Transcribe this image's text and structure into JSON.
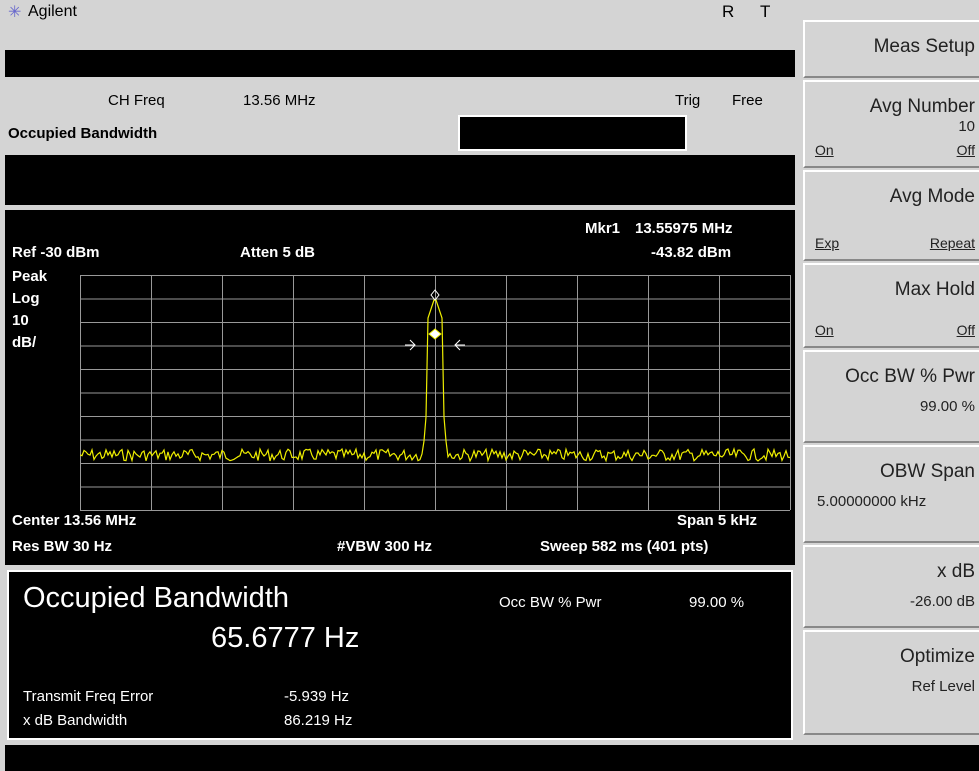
{
  "header": {
    "brand": "Agilent",
    "indicators": [
      "R",
      "T"
    ]
  },
  "status": {
    "ch_freq_label": "CH Freq",
    "ch_freq_value": "13.56 MHz",
    "trig_label": "Trig",
    "trig_value": "Free",
    "measurement": "Occupied Bandwidth"
  },
  "display": {
    "ref": "Ref -30 dBm",
    "atten": "Atten 5 dB",
    "marker_label": "Mkr1",
    "marker_freq": "13.55975 MHz",
    "marker_level": "-43.82 dBm",
    "scale": [
      "Peak",
      "Log",
      "10",
      "dB/"
    ],
    "center": "Center 13.56 MHz",
    "span": "Span 5 kHz",
    "res_bw": "Res BW 30 Hz",
    "vbw": "#VBW 300 Hz",
    "sweep": "Sweep 582 ms (401 pts)"
  },
  "results": {
    "title": "Occupied Bandwidth",
    "value": "65.6777 Hz",
    "occ_label": "Occ BW % Pwr",
    "occ_value": "99.00 %",
    "rows": [
      [
        "Transmit Freq Error",
        "-5.939 Hz"
      ],
      [
        "x dB Bandwidth",
        "86.219 Hz"
      ]
    ]
  },
  "softkeys": [
    {
      "title": "Meas Setup"
    },
    {
      "title": "Avg Number",
      "value": "10",
      "options": [
        "On",
        "Off"
      ]
    },
    {
      "title": "Avg Mode",
      "options": [
        "Exp",
        "Repeat"
      ]
    },
    {
      "title": "Max Hold",
      "options": [
        "On",
        "Off"
      ]
    },
    {
      "title": "Occ BW % Pwr",
      "value": "99.00 %"
    },
    {
      "title": "OBW Span",
      "value": "5.00000000 kHz"
    },
    {
      "title": "x dB",
      "value": "-26.00 dB"
    },
    {
      "title": "Optimize",
      "value": "Ref Level"
    }
  ]
}
